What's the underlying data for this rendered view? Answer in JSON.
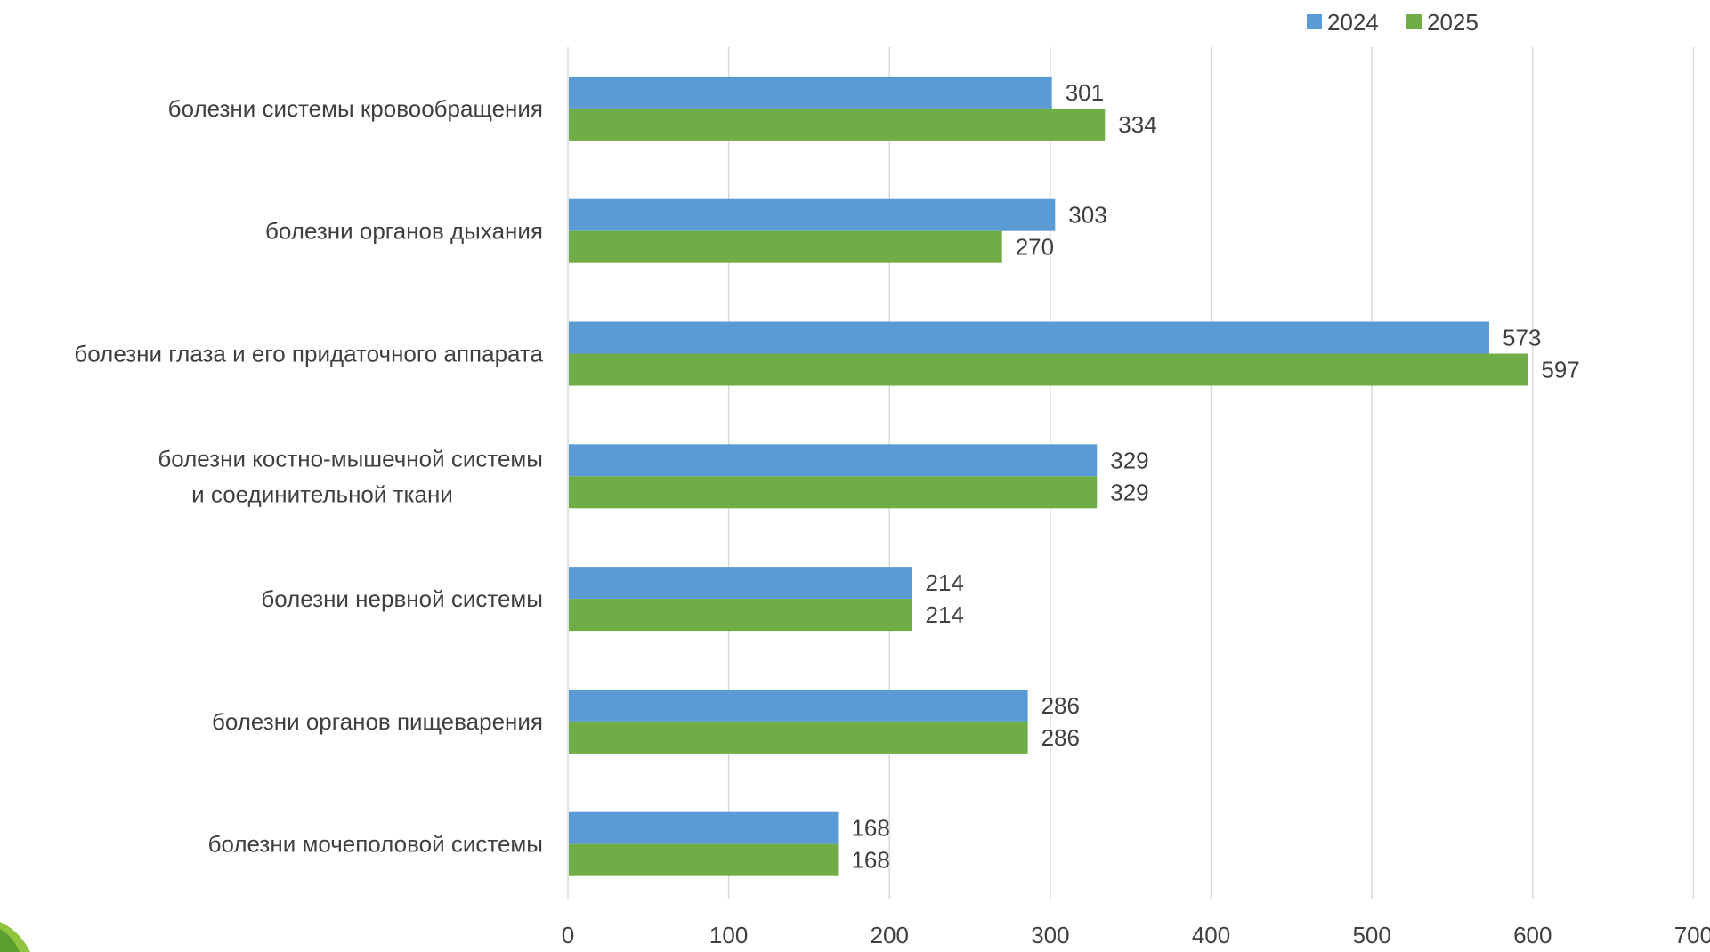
{
  "chart_data": {
    "type": "bar",
    "orientation": "horizontal",
    "categories": [
      [
        "болезни системы кровообращения"
      ],
      [
        "болезни органов дыхания"
      ],
      [
        "болезни глаза и его придаточного аппарата"
      ],
      [
        "болезни костно-мышечной системы",
        "и соединительной ткани"
      ],
      [
        "болезни нервной системы"
      ],
      [
        "болезни органов пищеварения"
      ],
      [
        "болезни мочеполовой системы"
      ]
    ],
    "series": [
      {
        "name": "2024",
        "color": "#5b9bd5",
        "values": [
          301,
          303,
          573,
          329,
          214,
          286,
          168
        ]
      },
      {
        "name": "2025",
        "color": "#70ad47",
        "values": [
          334,
          270,
          597,
          329,
          214,
          286,
          168
        ]
      }
    ],
    "xlim": [
      0,
      700
    ],
    "xticks": [
      0,
      100,
      200,
      300,
      400,
      500,
      600,
      700
    ],
    "grid": true,
    "legend_position": "top-right",
    "title": "",
    "xlabel": "",
    "ylabel": ""
  }
}
